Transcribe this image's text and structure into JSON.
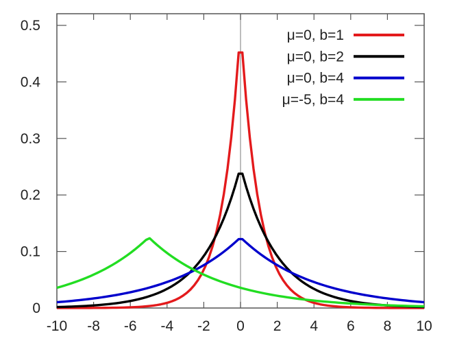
{
  "chart_data": {
    "type": "line",
    "title": "",
    "xlabel": "",
    "ylabel": "",
    "xlim": [
      -10,
      10
    ],
    "ylim": [
      0,
      0.52
    ],
    "grid": false,
    "legend_position": "top-right",
    "x_ticks": [
      "-10",
      "-8",
      "-6",
      "-4",
      "-2",
      "0",
      "2",
      "4",
      "6",
      "8",
      "10"
    ],
    "y_ticks": [
      "0",
      "0.1",
      "0.2",
      "0.3",
      "0.4",
      "0.5"
    ],
    "function": "laplace_pdf(x) = 1/(2b) * exp(-|x-mu|/b)",
    "samples": 100,
    "series": [
      {
        "name": "μ=0, b=1",
        "mu": 0,
        "b": 1,
        "color": "#e31a1c",
        "peak_value": 0.45
      },
      {
        "name": "μ=0, b=2",
        "mu": 0,
        "b": 2,
        "color": "#000000",
        "peak_value": 0.24
      },
      {
        "name": "μ=0, b=4",
        "mu": 0,
        "b": 4,
        "color": "#0000cc",
        "peak_value": 0.12
      },
      {
        "name": "μ=-5, b=4",
        "mu": -5,
        "b": 4,
        "color": "#22dd22",
        "peak_value": 0.125
      }
    ]
  }
}
